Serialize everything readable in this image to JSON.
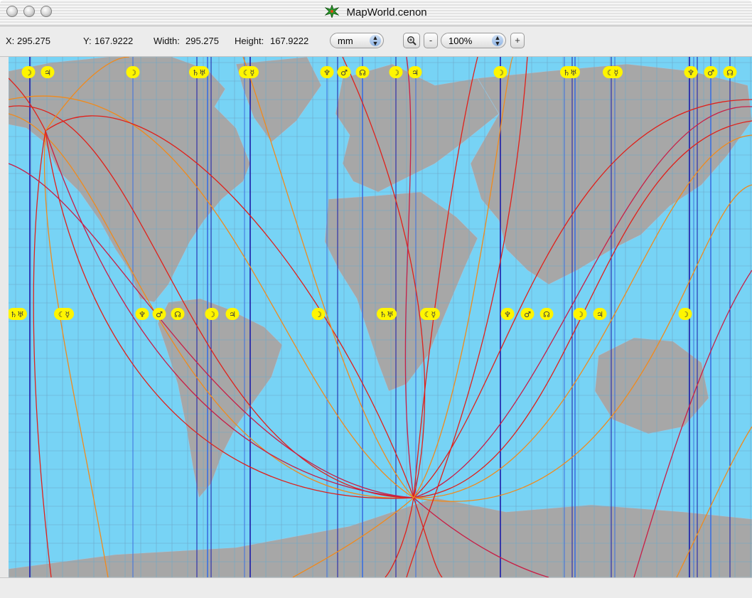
{
  "window": {
    "title": "MapWorld.cenon",
    "title_icon": "green-star-app-icon",
    "buttons": [
      "close",
      "minimize",
      "zoom"
    ]
  },
  "toolbar": {
    "x_label": "X:",
    "x_value": "295.275",
    "y_label": "Y:",
    "y_value": "167.9222",
    "width_label": "Width:",
    "width_value": "295.275",
    "height_label": "Height:",
    "height_value": "167.9222",
    "unit_value": "mm",
    "zoom_icon": "magnifier-zoom-icon",
    "zoom_minus": "-",
    "zoom_value": "100%",
    "zoom_plus": "+"
  },
  "map": {
    "ocean_color": "#77d3f5",
    "land_color": "#a7a7a7",
    "grid_color": "#6ea8c8",
    "meridian_color_dark": "#1a1aa8",
    "meridian_color_light": "#3b6fe0",
    "curve_colors": [
      "#e0201a",
      "#f08a1c",
      "#c81e46"
    ],
    "badge_color": "#fff500",
    "top_glyphs": [
      "☽",
      "♃",
      "☽",
      "♄♅",
      "☾☿",
      "♆",
      "♂",
      "☊",
      "☽",
      "♃",
      "☽",
      "♄♅",
      "☾☿",
      "♆",
      "♂",
      "☊"
    ],
    "middle_glyphs": [
      "♄♅",
      "☾☿",
      "♆",
      "♂",
      "☊",
      "☽",
      "♃",
      "☽",
      "♄♅",
      "☾☿",
      "♆",
      "♂",
      "☊",
      "☽",
      "♃",
      "☽"
    ]
  }
}
